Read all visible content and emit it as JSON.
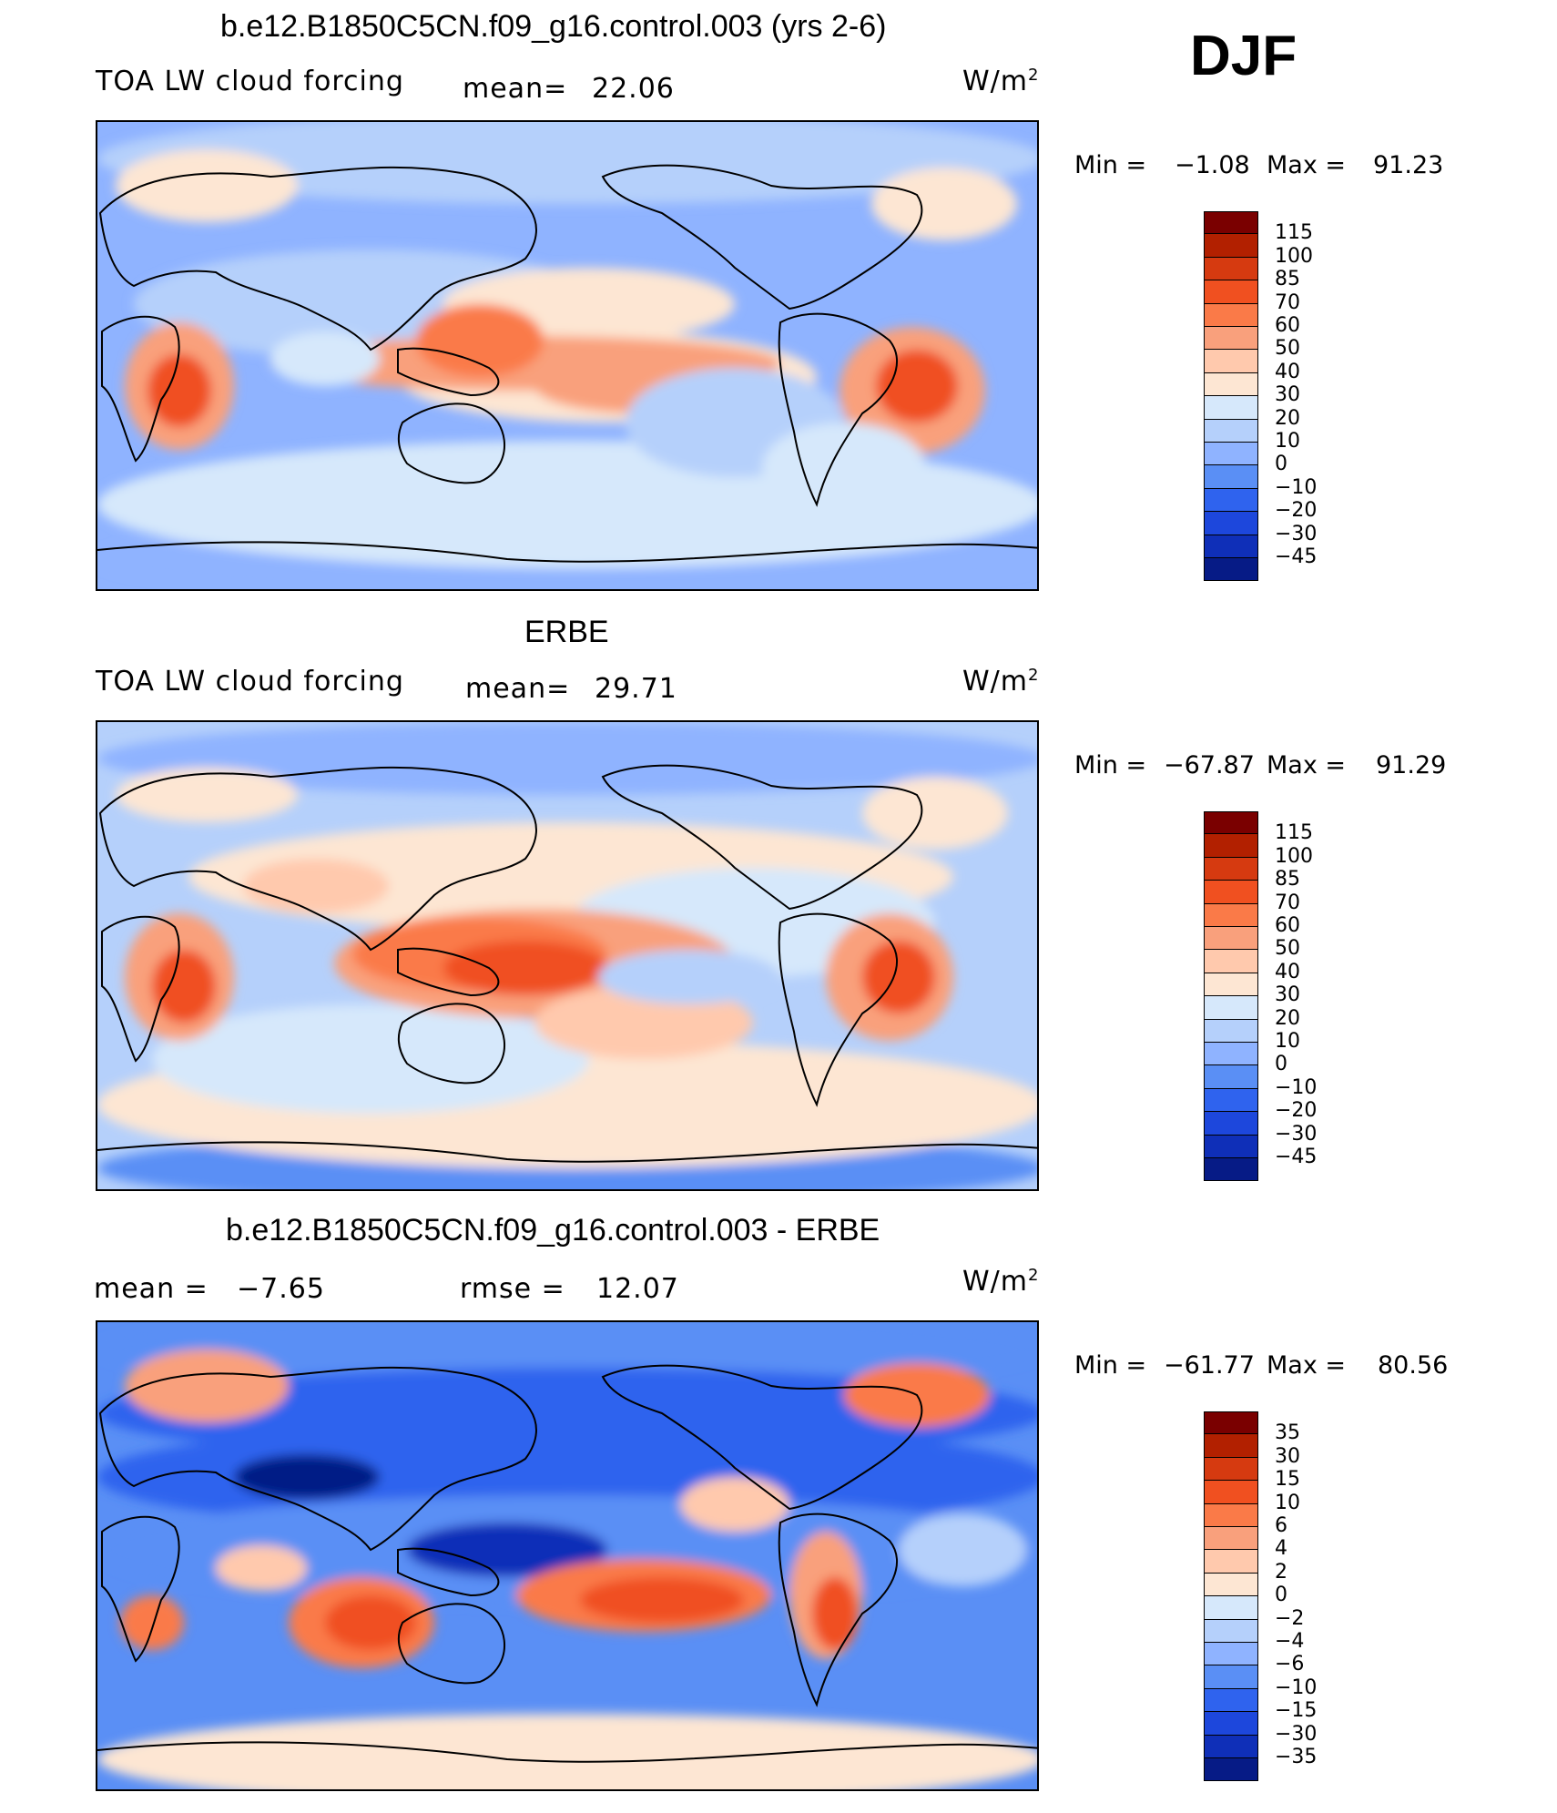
{
  "season": "DJF",
  "units_label": "W/m2",
  "panels": [
    {
      "title": "b.e12.B1850C5CN.f09_g16.control.003 (yrs 2-6)",
      "left_label": "TOA LW cloud forcing",
      "stat_label": "mean=",
      "stat_value": "22.06",
      "min_label": "Min =",
      "min_value": "−1.08",
      "max_label": "Max =",
      "max_value": "91.23"
    },
    {
      "title": "ERBE",
      "left_label": "TOA LW cloud forcing",
      "stat_label": "mean=",
      "stat_value": "29.71",
      "min_label": "Min =",
      "min_value": "−67.87",
      "max_label": "Max =",
      "max_value": "91.29"
    },
    {
      "title": "b.e12.B1850C5CN.f09_g16.control.003 - ERBE",
      "left_label": "mean =",
      "left_value": "−7.65",
      "stat_label": "rmse =",
      "stat_value": "12.07",
      "min_label": "Min =",
      "min_value": "−61.77",
      "max_label": "Max =",
      "max_value": "80.56"
    }
  ],
  "chart_data": [
    {
      "type": "heatmap",
      "title": "b.e12.B1850C5CN.f09_g16.control.003 (yrs 2-6)",
      "variable": "TOA LW cloud forcing",
      "units": "W/m2",
      "mean": 22.06,
      "min": -1.08,
      "max": 91.23,
      "colorbar_levels": [
        "115",
        "100",
        "85",
        "70",
        "60",
        "50",
        "40",
        "30",
        "20",
        "10",
        "0",
        "−10",
        "−20",
        "−30",
        "−45"
      ],
      "colors": [
        "#7a0000",
        "#b22000",
        "#d63a10",
        "#f05020",
        "#fa7a48",
        "#f9a07c",
        "#ffc9ad",
        "#fde6d3",
        "#d6e8fb",
        "#b5d0fb",
        "#8fb3ff",
        "#5a8ff5",
        "#2f63ee",
        "#1d47dc",
        "#0f2fb8",
        "#061b86"
      ]
    },
    {
      "type": "heatmap",
      "title": "ERBE",
      "variable": "TOA LW cloud forcing",
      "units": "W/m2",
      "mean": 29.71,
      "min": -67.87,
      "max": 91.29,
      "colorbar_levels": [
        "115",
        "100",
        "85",
        "70",
        "60",
        "50",
        "40",
        "30",
        "20",
        "10",
        "0",
        "−10",
        "−20",
        "−30",
        "−45"
      ],
      "colors": [
        "#7a0000",
        "#b22000",
        "#d63a10",
        "#f05020",
        "#fa7a48",
        "#f9a07c",
        "#ffc9ad",
        "#fde6d3",
        "#d6e8fb",
        "#b5d0fb",
        "#8fb3ff",
        "#5a8ff5",
        "#2f63ee",
        "#1d47dc",
        "#0f2fb8",
        "#061b86"
      ]
    },
    {
      "type": "heatmap",
      "title": "b.e12.B1850C5CN.f09_g16.control.003 - ERBE",
      "units": "W/m2",
      "mean": -7.65,
      "rmse": 12.07,
      "min": -61.77,
      "max": 80.56,
      "colorbar_levels": [
        "35",
        "30",
        "15",
        "10",
        "6",
        "4",
        "2",
        "0",
        "−2",
        "−4",
        "−6",
        "−10",
        "−15",
        "−30",
        "−35"
      ],
      "colors": [
        "#7a0000",
        "#b22000",
        "#d63a10",
        "#f05020",
        "#fa7a48",
        "#f9a07c",
        "#ffc9ad",
        "#fde6d3",
        "#d6e8fb",
        "#b5d0fb",
        "#8fb3ff",
        "#5a8ff5",
        "#2f63ee",
        "#1d47dc",
        "#0f2fb8",
        "#061b86"
      ]
    }
  ]
}
